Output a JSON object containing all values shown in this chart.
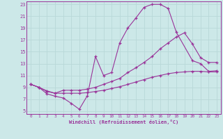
{
  "bg_color": "#cce8e8",
  "grid_color": "#aadddd",
  "line_color": "#993399",
  "xlabel": "Windchill (Refroidissement éolien,°C)",
  "xlim": [
    -0.5,
    23.5
  ],
  "ylim": [
    4.5,
    23.5
  ],
  "xticks": [
    0,
    1,
    2,
    3,
    4,
    5,
    6,
    7,
    8,
    9,
    10,
    11,
    12,
    13,
    14,
    15,
    16,
    17,
    18,
    19,
    20,
    21,
    22,
    23
  ],
  "yticks": [
    5,
    7,
    9,
    11,
    13,
    15,
    17,
    19,
    21,
    23
  ],
  "line1_x": [
    0,
    1,
    2,
    3,
    4,
    5,
    6,
    7,
    8,
    9,
    10,
    11,
    12,
    13,
    14,
    15,
    16,
    17,
    18,
    20,
    21,
    22,
    23
  ],
  "line1_y": [
    9.5,
    9.0,
    7.9,
    7.5,
    7.2,
    6.3,
    5.3,
    7.6,
    14.2,
    11.0,
    11.5,
    16.5,
    19.0,
    20.7,
    22.5,
    23.0,
    23.0,
    22.3,
    18.3,
    13.5,
    13.0,
    11.7,
    11.8
  ],
  "line2_x": [
    0,
    1,
    2,
    3,
    4,
    5,
    6,
    7,
    8,
    9,
    10,
    11,
    12,
    13,
    14,
    15,
    16,
    17,
    18,
    19,
    20,
    21,
    22,
    23
  ],
  "line2_y": [
    9.5,
    9.0,
    8.3,
    8.0,
    8.5,
    8.5,
    8.5,
    8.7,
    9.0,
    9.5,
    10.0,
    10.5,
    11.5,
    12.3,
    13.2,
    14.2,
    15.5,
    16.5,
    17.5,
    18.2,
    16.3,
    14.0,
    13.2,
    13.2
  ],
  "line3_x": [
    0,
    1,
    2,
    3,
    4,
    5,
    6,
    7,
    8,
    9,
    10,
    11,
    12,
    13,
    14,
    15,
    16,
    17,
    18,
    19,
    20,
    21,
    22,
    23
  ],
  "line3_y": [
    9.5,
    9.0,
    8.4,
    8.0,
    8.0,
    8.0,
    8.0,
    8.1,
    8.3,
    8.5,
    8.8,
    9.1,
    9.5,
    9.9,
    10.3,
    10.7,
    11.0,
    11.3,
    11.5,
    11.6,
    11.7,
    11.7,
    11.6,
    11.6
  ]
}
